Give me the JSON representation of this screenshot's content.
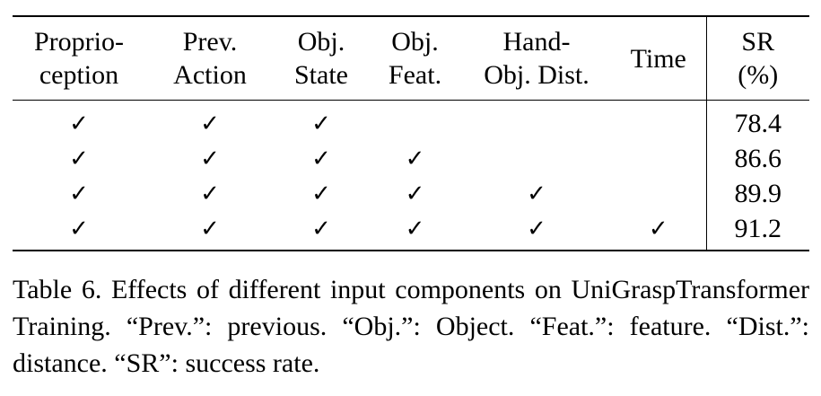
{
  "table": {
    "headers": [
      {
        "line1": "Proprio-",
        "line2": "ception"
      },
      {
        "line1": "Prev.",
        "line2": "Action"
      },
      {
        "line1": "Obj.",
        "line2": "State"
      },
      {
        "line1": "Obj.",
        "line2": "Feat."
      },
      {
        "line1": "Hand-",
        "line2": "Obj. Dist."
      },
      {
        "line1": "Time",
        "line2": ""
      },
      {
        "line1": "SR",
        "line2": "(%)"
      }
    ],
    "check_mark": "✓",
    "rows": [
      {
        "proprioception": true,
        "prev_action": true,
        "obj_state": true,
        "obj_feat": false,
        "hand_obj_dist": false,
        "time": false,
        "sr": "78.4"
      },
      {
        "proprioception": true,
        "prev_action": true,
        "obj_state": true,
        "obj_feat": true,
        "hand_obj_dist": false,
        "time": false,
        "sr": "86.6"
      },
      {
        "proprioception": true,
        "prev_action": true,
        "obj_state": true,
        "obj_feat": true,
        "hand_obj_dist": true,
        "time": false,
        "sr": "89.9"
      },
      {
        "proprioception": true,
        "prev_action": true,
        "obj_state": true,
        "obj_feat": true,
        "hand_obj_dist": true,
        "time": true,
        "sr": "91.2"
      }
    ],
    "best_row_index": 3
  },
  "caption": "Table 6. Effects of different input components on UniGraspTransformer Training. “Prev.”: previous. “Obj.”: Object. “Feat.”: feature. “Dist.”: distance. “SR”: success rate."
}
